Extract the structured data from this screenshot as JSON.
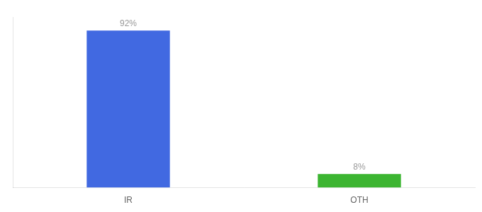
{
  "chart_data": {
    "type": "bar",
    "categories": [
      "IR",
      "OTH"
    ],
    "values": [
      92,
      8
    ],
    "value_labels": [
      "92%",
      "8%"
    ],
    "colors": [
      "#4169e1",
      "#3cb531"
    ],
    "ylim": [
      0,
      100
    ],
    "grid": false,
    "data_labels": true,
    "tick_labels": "x"
  }
}
